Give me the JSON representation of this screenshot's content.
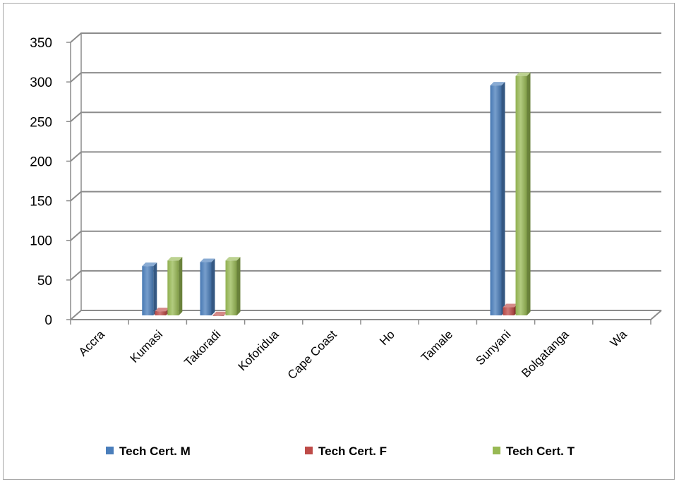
{
  "chart_data": {
    "type": "bar",
    "categories": [
      "Accra",
      "Kumasi",
      "Takoradi",
      "Koforidua",
      "Cape Coast",
      "Ho",
      "Tamale",
      "Sunyani",
      "Bolgatanga",
      "Wa"
    ],
    "series": [
      {
        "name": "Tech Cert. M",
        "values": [
          0,
          64,
          69,
          0,
          0,
          0,
          0,
          292,
          0,
          0
        ],
        "color": "#4a7ebb"
      },
      {
        "name": "Tech Cert. F",
        "values": [
          0,
          7,
          2,
          0,
          0,
          0,
          0,
          12,
          0,
          0
        ],
        "color": "#be4b48"
      },
      {
        "name": "Tech Cert. T",
        "values": [
          0,
          71,
          71,
          0,
          0,
          0,
          0,
          304,
          0,
          0
        ],
        "color": "#98b954"
      }
    ],
    "ylim": [
      0,
      350
    ],
    "yticks": [
      0,
      50,
      100,
      150,
      200,
      250,
      300,
      350
    ],
    "grid": true,
    "legend_position": "bottom"
  }
}
